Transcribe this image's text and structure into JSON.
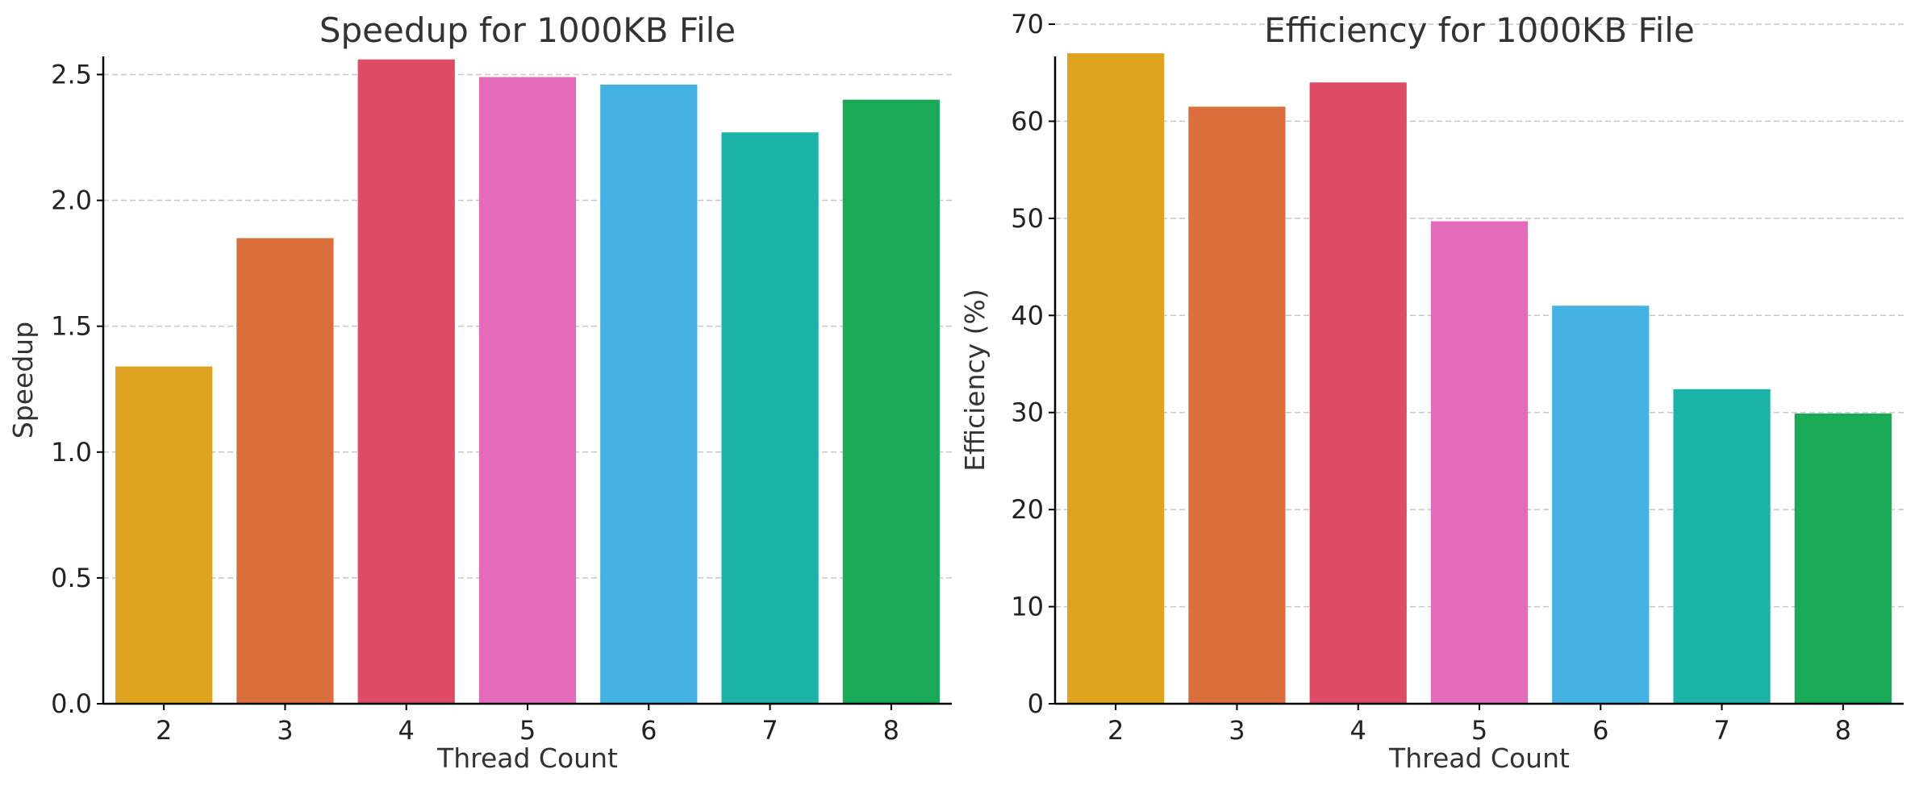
{
  "chart_data": [
    {
      "type": "bar",
      "title": "Speedup for 1000KB File",
      "xlabel": "Thread Count",
      "ylabel": "Speedup",
      "categories": [
        "2",
        "3",
        "4",
        "5",
        "6",
        "7",
        "8"
      ],
      "values": [
        1.34,
        1.85,
        2.56,
        2.49,
        2.46,
        2.27,
        2.4
      ],
      "colors": [
        "#E0A31F",
        "#DB6F3B",
        "#DE4B66",
        "#E46BBA",
        "#44B2E2",
        "#1BB2A8",
        "#19A957"
      ],
      "ylim": [
        0,
        2.7
      ],
      "yticks": [
        "0.0",
        "0.5",
        "1.0",
        "1.5",
        "2.0",
        "2.5"
      ],
      "grid": true,
      "legend": "none"
    },
    {
      "type": "bar",
      "title": "Efficiency for 1000KB File",
      "xlabel": "Thread Count",
      "ylabel": "Efficiency (%)",
      "categories": [
        "2",
        "3",
        "4",
        "5",
        "6",
        "7",
        "8"
      ],
      "values": [
        67.0,
        61.5,
        64.0,
        49.7,
        41.0,
        32.4,
        29.9
      ],
      "colors": [
        "#E0A31F",
        "#DB6F3B",
        "#DE4B66",
        "#E46BBA",
        "#44B2E2",
        "#1BB2A8",
        "#19A957"
      ],
      "ylim": [
        0,
        70
      ],
      "yticks": [
        "0",
        "10",
        "20",
        "30",
        "40",
        "50",
        "60",
        "70"
      ],
      "grid": true,
      "legend": "none"
    }
  ]
}
